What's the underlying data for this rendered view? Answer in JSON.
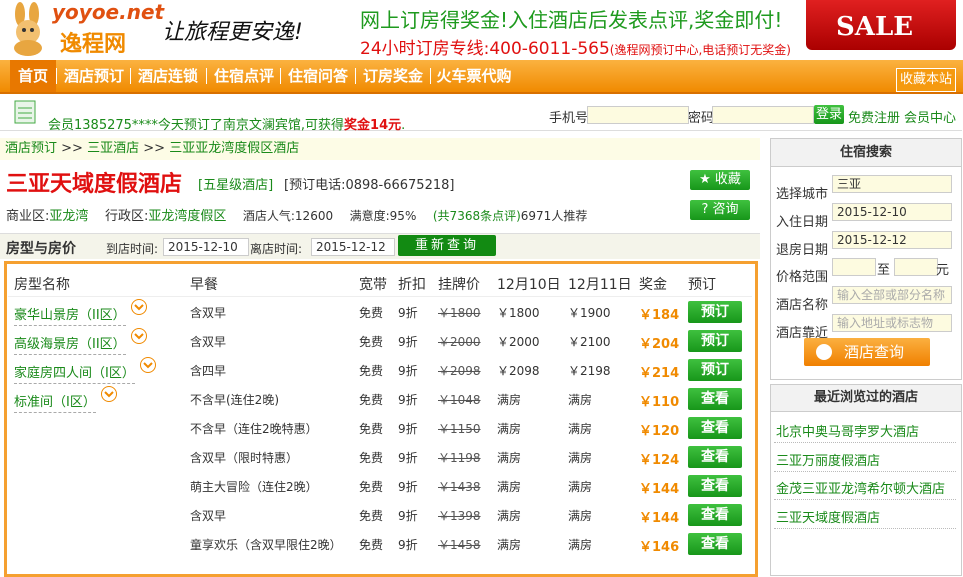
{
  "header": {
    "logo_domain": "yoyoe.net",
    "logo_name": "逸程网",
    "slogan": "让旅程更安逸!",
    "banner": "网上订房得奖金!入住酒店后发表点评,奖金即付!",
    "hotline": "24小时订房专线:400-6011-565",
    "hotline_note": "(逸程网预订中心,电话预订无奖金)",
    "sale": "SALE"
  },
  "nav": {
    "items": [
      "首页",
      "酒店预订",
      "酒店连锁",
      "住宿点评",
      "住宿问答",
      "订房奖金",
      "火车票代购"
    ],
    "bookmark": "收藏本站"
  },
  "ticker": {
    "text": "会员1385275****今天预订了南京文澜宾馆,可获得",
    "bonus": "奖金14元",
    "end": "."
  },
  "login": {
    "phone_label": "手机号",
    "password_label": "密码",
    "login": "登录",
    "register": "免费注册",
    "member_center": "会员中心"
  },
  "breadcrumb": {
    "items": [
      "酒店预订",
      "三亚酒店",
      "三亚亚龙湾度假区酒店"
    ],
    "separator": ">>"
  },
  "hotel": {
    "name": "三亚天域度假酒店",
    "star": "[五星级酒店]",
    "phone": "[预订电话:0898-66675218]",
    "favorite": "收藏",
    "consult": "咨询",
    "district_label": "商业区:",
    "district": "亚龙湾",
    "admin_label": "行政区:",
    "admin": "亚龙湾度假区",
    "popularity": "酒店人气:12600",
    "satisfaction": "满意度:95%",
    "reviews": "(共7368条点评)",
    "recommend": "6971人推荐"
  },
  "rooms": {
    "title": "房型与房价",
    "checkin_label": "到店时间:",
    "checkin": "2015-12-10",
    "checkout_label": "离店时间:",
    "checkout": "2015-12-12",
    "requery": "重新查询",
    "columns": [
      "房型名称",
      "早餐",
      "宽带",
      "折扣",
      "挂牌价",
      "12月10日",
      "12月11日",
      "奖金",
      "预订"
    ],
    "rows": [
      {
        "room": "豪华山景房（II区）",
        "breakfast": "含双早",
        "internet": "免费",
        "discount": "9折",
        "list_price": "￥1800",
        "day1": "￥1800",
        "day2": "￥1900",
        "bonus": "￥184",
        "action": "预订"
      },
      {
        "room": "高级海景房（II区）",
        "breakfast": "含双早",
        "internet": "免费",
        "discount": "9折",
        "list_price": "￥2000",
        "day1": "￥2000",
        "day2": "￥2100",
        "bonus": "￥204",
        "action": "预订"
      },
      {
        "room": "家庭房四人间（I区）",
        "breakfast": "含四早",
        "internet": "免费",
        "discount": "9折",
        "list_price": "￥2098",
        "day1": "￥2098",
        "day2": "￥2198",
        "bonus": "￥214",
        "action": "预订"
      },
      {
        "room": "标准间（I区）",
        "breakfast": "不含早(连住2晚)",
        "internet": "免费",
        "discount": "9折",
        "list_price": "￥1048",
        "day1": "满房",
        "day2": "满房",
        "bonus": "￥110",
        "action": "查看"
      },
      {
        "breakfast": "不含早（连住2晚特惠）",
        "internet": "免费",
        "discount": "9折",
        "list_price": "￥1150",
        "day1": "满房",
        "day2": "满房",
        "bonus": "￥120",
        "action": "查看"
      },
      {
        "breakfast": "含双早（限时特惠）",
        "internet": "免费",
        "discount": "9折",
        "list_price": "￥1198",
        "day1": "满房",
        "day2": "满房",
        "bonus": "￥124",
        "action": "查看"
      },
      {
        "breakfast": "萌主大冒险（连住2晚）",
        "internet": "免费",
        "discount": "9折",
        "list_price": "￥1438",
        "day1": "满房",
        "day2": "满房",
        "bonus": "￥144",
        "action": "查看"
      },
      {
        "breakfast": "含双早",
        "internet": "免费",
        "discount": "9折",
        "list_price": "￥1398",
        "day1": "满房",
        "day2": "满房",
        "bonus": "￥144",
        "action": "查看"
      },
      {
        "breakfast": "童享欢乐（含双早限住2晚）",
        "internet": "免费",
        "discount": "9折",
        "list_price": "￥1458",
        "day1": "满房",
        "day2": "满房",
        "bonus": "￥146",
        "action": "查看"
      }
    ]
  },
  "sidebar": {
    "search": {
      "title": "住宿搜索",
      "fields": [
        {
          "label": "选择城市",
          "value": "三亚"
        },
        {
          "label": "入住日期",
          "value": "2015-12-10"
        },
        {
          "label": "退房日期",
          "value": "2015-12-12"
        },
        {
          "label": "酒店名称",
          "value": "输入全部或部分名称"
        },
        {
          "label": "酒店靠近",
          "value": "输入地址或标志物"
        }
      ],
      "price_label": "价格范围",
      "to": "至",
      "unit": "元",
      "button": "酒店查询"
    },
    "recent": {
      "title": "最近浏览过的酒店",
      "hotels": [
        "北京中奥马哥孛罗大酒店",
        "三亚万丽度假酒店",
        "金茂三亚亚龙湾希尔顿大酒店",
        "三亚天域度假酒店"
      ]
    }
  }
}
